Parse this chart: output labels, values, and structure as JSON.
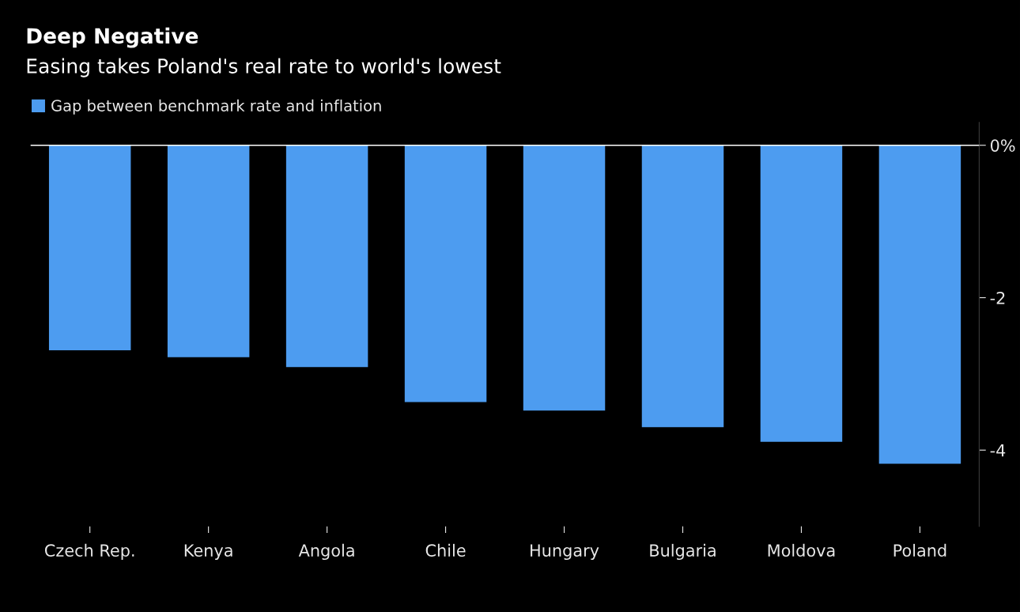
{
  "chart_data": {
    "type": "bar",
    "title": "Deep Negative",
    "subtitle": "Easing takes Poland's real rate to world's lowest",
    "categories": [
      "Czech Rep.",
      "Kenya",
      "Angola",
      "Chile",
      "Hungary",
      "Bulgaria",
      "Moldova",
      "Poland"
    ],
    "series": [
      {
        "name": "Gap between benchmark rate and inflation",
        "color": "#4d9cf0",
        "values": [
          -2.69,
          -2.78,
          -2.91,
          -3.37,
          -3.48,
          -3.7,
          -3.89,
          -4.18
        ]
      }
    ],
    "ylim": [
      -5,
      0.3
    ],
    "yticks": [
      {
        "value": 0,
        "label": "0%"
      },
      -2,
      -4
    ],
    "ref_lines": [
      {
        "axis": "y",
        "value": 0,
        "label": null,
        "color": "#ffffff"
      }
    ],
    "legend": "top left",
    "grid": false
  }
}
